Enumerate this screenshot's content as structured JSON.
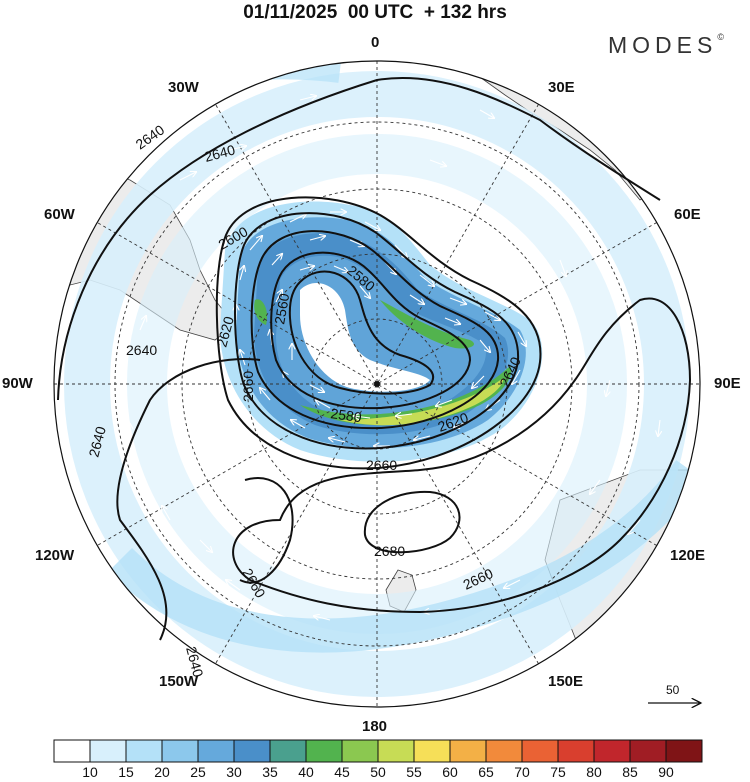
{
  "header": {
    "title": "01/11/2025  00 UTC  + 132 hrs",
    "brand": "MODES",
    "brand_mark": "©"
  },
  "map": {
    "projection": "south-polar-stereographic",
    "longitude_labels": [
      "0",
      "30E",
      "60E",
      "90E",
      "120E",
      "150E",
      "180",
      "150W",
      "120W",
      "90W",
      "60W",
      "30W"
    ],
    "contour_labels": [
      "2640",
      "2640",
      "2600",
      "2580",
      "2560",
      "2620",
      "2640",
      "2660",
      "2580",
      "2620",
      "2640",
      "2660",
      "2640",
      "2680",
      "2660",
      "2640",
      "2660"
    ]
  },
  "vector_scale": {
    "value": "50"
  },
  "colorbar": {
    "labels": [
      "10",
      "15",
      "20",
      "25",
      "30",
      "35",
      "40",
      "45",
      "50",
      "55",
      "60",
      "65",
      "70",
      "75",
      "80",
      "85",
      "90"
    ],
    "colors": [
      "#ffffff",
      "#d8f0fc",
      "#b4e1f8",
      "#8cc8ec",
      "#65a9dc",
      "#4a8fc9",
      "#4aa08e",
      "#52b34e",
      "#8bc850",
      "#c7dc55",
      "#f6df58",
      "#f3b046",
      "#f28a3b",
      "#ea6234",
      "#d93f2e",
      "#c1262c",
      "#a01d24",
      "#7f1416"
    ]
  }
}
